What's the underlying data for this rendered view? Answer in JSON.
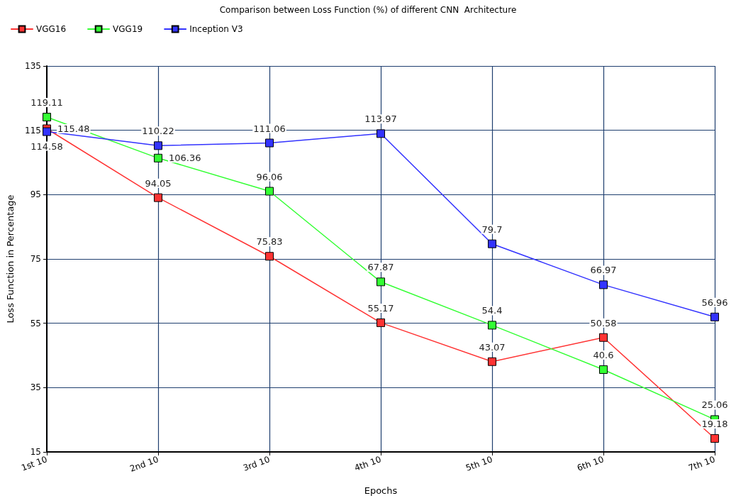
{
  "chart_data": {
    "type": "line",
    "title": "Comparison between Loss Function (%) of different CNN  Architecture",
    "xlabel": "Epochs",
    "ylabel": "Loss Function in Percentage",
    "categories": [
      "1st 10",
      "2nd 10",
      "3rd 10",
      "4th 10",
      "5th 10",
      "6th 10",
      "7th 10"
    ],
    "series": [
      {
        "name": "VGG16",
        "color": "#ff3333",
        "values": [
          115.48,
          94.05,
          75.83,
          55.17,
          43.07,
          50.58,
          19.18
        ]
      },
      {
        "name": "VGG19",
        "color": "#33ff33",
        "values": [
          119.11,
          106.36,
          96.06,
          67.87,
          54.4,
          40.6,
          25.06
        ]
      },
      {
        "name": "Inception V3",
        "color": "#3333ff",
        "values": [
          114.58,
          110.22,
          111.06,
          113.97,
          79.7,
          66.97,
          56.96
        ]
      }
    ],
    "ylim": [
      15,
      135
    ],
    "yticks": [
      15,
      35,
      55,
      75,
      95,
      115,
      135
    ],
    "grid": true,
    "legend": "top left",
    "marker": "square",
    "line_style": "solid",
    "data_labels": true
  }
}
